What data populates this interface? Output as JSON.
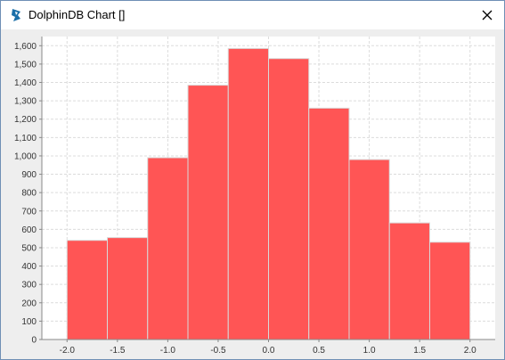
{
  "window": {
    "title": "DolphinDB Chart []",
    "icons": {
      "app": "dolphindb-logo-icon",
      "close": "close-icon"
    }
  },
  "colors": {
    "bar_fill": "#ff5555",
    "bar_stroke": "#d9d9d9",
    "plot_bg": "#ffffff",
    "frame_bg": "#eeeeee",
    "grid": "#dcdcdc"
  },
  "chart_data": {
    "type": "bar",
    "title": "",
    "xlabel": "",
    "ylabel": "",
    "bins": [
      {
        "start": -2.0,
        "end": -1.6,
        "value": 540
      },
      {
        "start": -1.6,
        "end": -1.2,
        "value": 555
      },
      {
        "start": -1.2,
        "end": -0.8,
        "value": 990
      },
      {
        "start": -0.8,
        "end": -0.4,
        "value": 1385
      },
      {
        "start": -0.4,
        "end": 0.0,
        "value": 1585
      },
      {
        "start": 0.0,
        "end": 0.4,
        "value": 1530
      },
      {
        "start": 0.4,
        "end": 0.8,
        "value": 1260
      },
      {
        "start": 0.8,
        "end": 1.2,
        "value": 980
      },
      {
        "start": 1.2,
        "end": 1.6,
        "value": 635
      },
      {
        "start": 1.6,
        "end": 2.0,
        "value": 530
      }
    ],
    "xlim": [
      -2.25,
      2.25
    ],
    "ylim": [
      0,
      1650
    ],
    "xticks": [
      "-2.0",
      "-1.5",
      "-1.0",
      "-0.5",
      "0.0",
      "0.5",
      "1.0",
      "1.5",
      "2.0"
    ],
    "yticks": [
      "0",
      "100",
      "200",
      "300",
      "400",
      "500",
      "600",
      "700",
      "800",
      "900",
      "1,000",
      "1,100",
      "1,200",
      "1,300",
      "1,400",
      "1,500",
      "1,600"
    ],
    "grid": true,
    "legend": "none"
  }
}
